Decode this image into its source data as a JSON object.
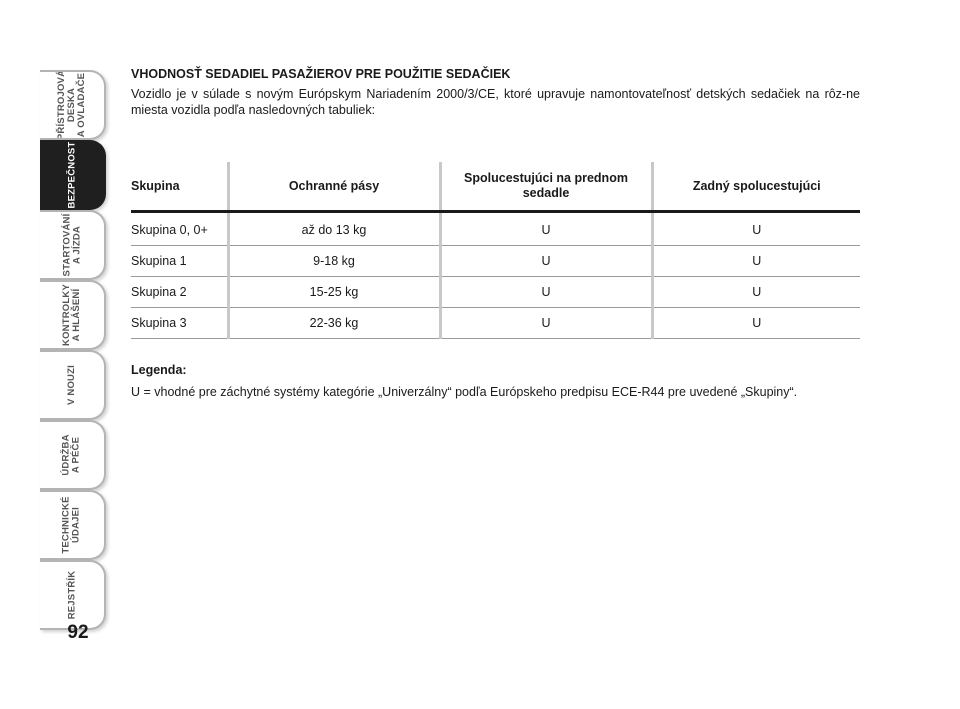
{
  "sidebar": {
    "tabs": [
      {
        "label": "PŘÍSTROJOVÁ\nDESKA\nA OVLADAČE"
      },
      {
        "label": "BEZPEČNOST"
      },
      {
        "label": "STARTOVÁNÍ\nA JÍZDA"
      },
      {
        "label": "KONTROLKY\nA HLÁŠENÍ"
      },
      {
        "label": "V NOUZI"
      },
      {
        "label": "ÚDRŽBA\nA PÉČE"
      },
      {
        "label": "TECHNICKÉ\nÚDAJEI"
      },
      {
        "label": "REJSTŘÍK"
      }
    ],
    "active_tab": "BEZPEČNOST",
    "page_number": "92"
  },
  "section": {
    "title": "VHODNOSŤ SEDADIEL PASAŽIEROV PRE POUŽITIE SEDAČIEK",
    "intro": "Vozidlo je v súlade s novým Európskym Nariadením 2000/3/CE, ktoré upravuje namontovateľnosť detských sedačiek na rôz-ne miesta vozidla podľa nasledovných tabuliek:"
  },
  "table": {
    "headers": [
      "Skupina",
      "Ochranné pásy",
      "Spolucestujúci na prednom sedadle",
      "Zadný spolucestujúci"
    ],
    "rows": [
      [
        "Skupina 0, 0+",
        "až do 13 kg",
        "U",
        "U"
      ],
      [
        "Skupina 1",
        "9-18 kg",
        "U",
        "U"
      ],
      [
        "Skupina 2",
        "15-25 kg",
        "U",
        "U"
      ],
      [
        "Skupina 3",
        "22-36 kg",
        "U",
        "U"
      ]
    ]
  },
  "legend": {
    "title": "Legenda:",
    "text": "U = vhodné pre záchytné systémy kategórie „Univerzálny“ podľa Európskeho predpisu ECE-R44 pre uvedené „Skupiny“."
  },
  "colors": {
    "active_tab_bg": "#1f1f1f",
    "tab_border": "#b4b4b4",
    "column_separator": "#c8c8c8"
  }
}
